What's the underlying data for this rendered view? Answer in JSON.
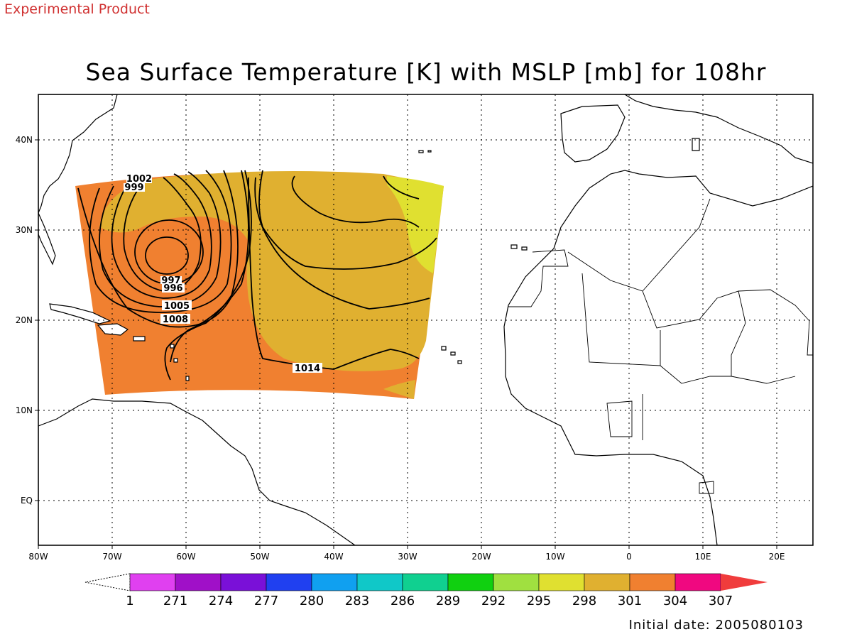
{
  "header": {
    "experimental_label": "Experimental Product",
    "title": "Sea Surface Temperature [K] with MSLP [mb] for 108hr"
  },
  "map": {
    "lon_ticks": [
      "80W",
      "70W",
      "60W",
      "50W",
      "40W",
      "30W",
      "20W",
      "10W",
      "0",
      "10E",
      "20E"
    ],
    "lat_ticks": [
      "40N",
      "30N",
      "20N",
      "10N",
      "EQ"
    ],
    "lon_range_deg": [
      -80,
      25
    ],
    "lat_range_deg": [
      -5,
      45
    ],
    "gridlines": "dotted"
  },
  "isobars": {
    "labels": [
      "1002",
      "999",
      "997",
      "996",
      "1005",
      "1008",
      "1014"
    ],
    "units": "mb"
  },
  "colorbar": {
    "labels": [
      "1",
      "271",
      "274",
      "277",
      "280",
      "283",
      "286",
      "289",
      "292",
      "295",
      "298",
      "301",
      "304",
      "307"
    ],
    "colors": [
      "#e040f0",
      "#a010c8",
      "#7a10d8",
      "#2040f0",
      "#10a0f0",
      "#10c8c8",
      "#10d090",
      "#10d010",
      "#a0e040",
      "#e0e030",
      "#e0b030",
      "#f08030",
      "#f00880",
      "#f03c3c"
    ]
  },
  "sst_colors": {
    "warmest": "#f08030",
    "warm": "#e0b030",
    "cooler": "#e0e030"
  },
  "footer": {
    "initial_date": "Initial date: 2005080103"
  }
}
